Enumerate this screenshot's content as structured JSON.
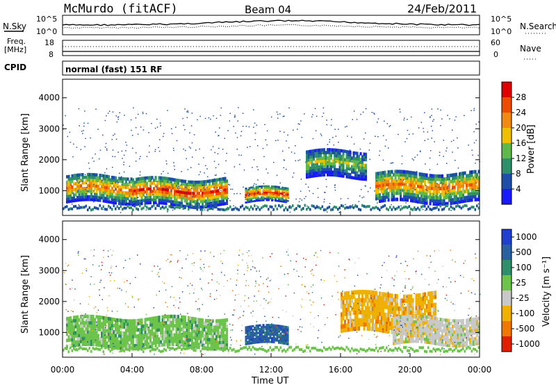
{
  "header": {
    "station": "McMurdo (fitACF)",
    "beam": "Beam 04",
    "date": "24/Feb/2011"
  },
  "panels": {
    "nsky": {
      "left_label": "N.Sky",
      "tick_top": "10^5",
      "tick_bottom": "10^0",
      "right_label": "N.Search",
      "right_tick_top": "10^5",
      "right_tick_bottom": "10^0"
    },
    "freq": {
      "left_label_1": "Freq.",
      "left_label_2": "[MHz]",
      "tick_top": "18",
      "tick_bottom": "8",
      "right_label": "Nave",
      "right_tick_top": "60",
      "right_tick_bottom": "0"
    },
    "cpid": {
      "left_label": "CPID",
      "value": "normal (fast) 151 RF"
    }
  },
  "chart_data": [
    {
      "type": "heatmap",
      "panel": "power",
      "ylabel": "Slant Range [km]",
      "ylim": [
        200,
        4600
      ],
      "yticks": [
        "1000",
        "2000",
        "3000",
        "4000"
      ],
      "xlim": [
        "00:00",
        "24:00"
      ],
      "colorbar_label": "Power [dB]",
      "colorbar_ticks": [
        "4",
        "8",
        "12",
        "16",
        "20",
        "24",
        "28"
      ],
      "colors": [
        "#1a1aff",
        "#1f4fa8",
        "#2f8f6a",
        "#5fb84a",
        "#f0c000",
        "#f08a10",
        "#ee4c00",
        "#e00000"
      ],
      "echo_bands": [
        {
          "t_start": 0.2,
          "t_end": 4.0,
          "range_low": 600,
          "range_high": 1500,
          "peak": 24
        },
        {
          "t_start": 4.0,
          "t_end": 9.5,
          "range_low": 500,
          "range_high": 1400,
          "peak": 28
        },
        {
          "t_start": 10.5,
          "t_end": 13.0,
          "range_low": 600,
          "range_high": 1100,
          "peak": 28
        },
        {
          "t_start": 14.0,
          "t_end": 17.5,
          "range_low": 1400,
          "range_high": 2300,
          "peak": 16
        },
        {
          "t_start": 18.0,
          "t_end": 24.0,
          "range_low": 600,
          "range_high": 1600,
          "peak": 24
        }
      ]
    },
    {
      "type": "heatmap",
      "panel": "velocity",
      "ylabel": "Slant Range [km]",
      "ylim": [
        200,
        4600
      ],
      "yticks": [
        "1000",
        "2000",
        "3000",
        "4000"
      ],
      "xlim": [
        "00:00",
        "24:00"
      ],
      "xticks": [
        "00:00",
        "04:00",
        "08:00",
        "12:00",
        "16:00",
        "20:00",
        "00:00"
      ],
      "xlabel": "Time UT",
      "colorbar_label": "Velocity [m s⁻¹]",
      "colorbar_ticks": [
        "1000",
        "500",
        "100",
        "25",
        "-25",
        "-100",
        "-500",
        "-1000"
      ],
      "colors": [
        "#1f3fd0",
        "#2a5fa0",
        "#2f8f6a",
        "#6cc44a",
        "#c8c8c8",
        "#f0b000",
        "#f07800",
        "#e02000"
      ],
      "echo_bands": [
        {
          "t_start": 0.2,
          "t_end": 9.5,
          "range_low": 500,
          "range_high": 1500,
          "velocity": 100
        },
        {
          "t_start": 10.5,
          "t_end": 13.0,
          "range_low": 600,
          "range_high": 1200,
          "velocity": 500
        },
        {
          "t_start": 16.0,
          "t_end": 21.5,
          "range_low": 1000,
          "range_high": 2300,
          "velocity": -100
        },
        {
          "t_start": 19.0,
          "t_end": 24.0,
          "range_low": 600,
          "range_high": 1500,
          "velocity": 25
        }
      ]
    }
  ]
}
